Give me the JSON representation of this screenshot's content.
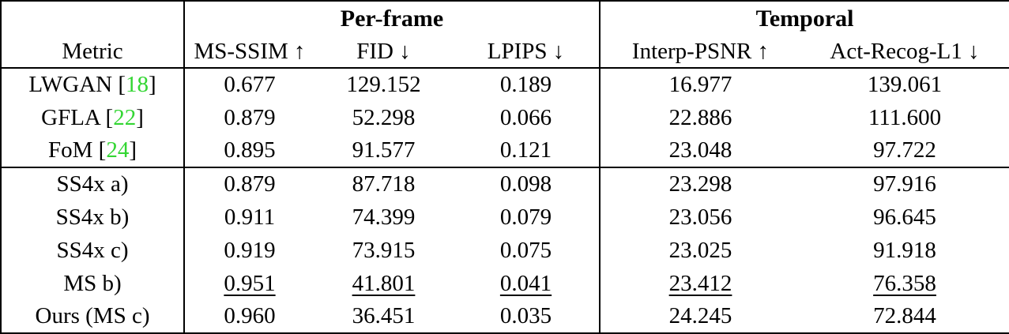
{
  "table": {
    "corner_label": "",
    "groups": [
      {
        "label": "Per-frame",
        "span": 3
      },
      {
        "label": "Temporal",
        "span": 2
      }
    ],
    "columns": [
      "Metric",
      "MS-SSIM ↑",
      "FID ↓",
      "LPIPS ↓",
      "Interp-PSNR ↑",
      "Act-Recog-L1 ↓"
    ],
    "cite_color": "#33d633",
    "rows": [
      {
        "label_prefix": "LWGAN [",
        "cite": "18",
        "label_suffix": "]",
        "values": [
          "0.677",
          "129.152",
          "0.189",
          "16.977",
          "139.061"
        ],
        "style": "normal",
        "group_start": false
      },
      {
        "label_prefix": "GFLA [",
        "cite": "22",
        "label_suffix": "]",
        "values": [
          "0.879",
          "52.298",
          "0.066",
          "22.886",
          "111.600"
        ],
        "style": "normal",
        "group_start": false
      },
      {
        "label_prefix": "FoM [",
        "cite": "24",
        "label_suffix": "]",
        "values": [
          "0.895",
          "91.577",
          "0.121",
          "23.048",
          "97.722"
        ],
        "style": "normal",
        "group_start": false
      },
      {
        "label_prefix": "SS4x a)",
        "cite": "",
        "label_suffix": "",
        "values": [
          "0.879",
          "87.718",
          "0.098",
          "23.298",
          "97.916"
        ],
        "style": "normal",
        "group_start": true
      },
      {
        "label_prefix": "SS4x b)",
        "cite": "",
        "label_suffix": "",
        "values": [
          "0.911",
          "74.399",
          "0.079",
          "23.056",
          "96.645"
        ],
        "style": "normal",
        "group_start": false
      },
      {
        "label_prefix": "SS4x c)",
        "cite": "",
        "label_suffix": "",
        "values": [
          "0.919",
          "73.915",
          "0.075",
          "23.025",
          "91.918"
        ],
        "style": "normal",
        "group_start": false
      },
      {
        "label_prefix": "MS b)",
        "cite": "",
        "label_suffix": "",
        "values": [
          "0.951",
          "41.801",
          "0.041",
          "23.412",
          "76.358"
        ],
        "style": "underline",
        "group_start": false
      },
      {
        "label_prefix": "Ours (MS c)",
        "cite": "",
        "label_suffix": "",
        "values": [
          "0.960",
          "36.451",
          "0.035",
          "24.245",
          "72.844"
        ],
        "style": "bold",
        "group_start": false
      }
    ]
  }
}
